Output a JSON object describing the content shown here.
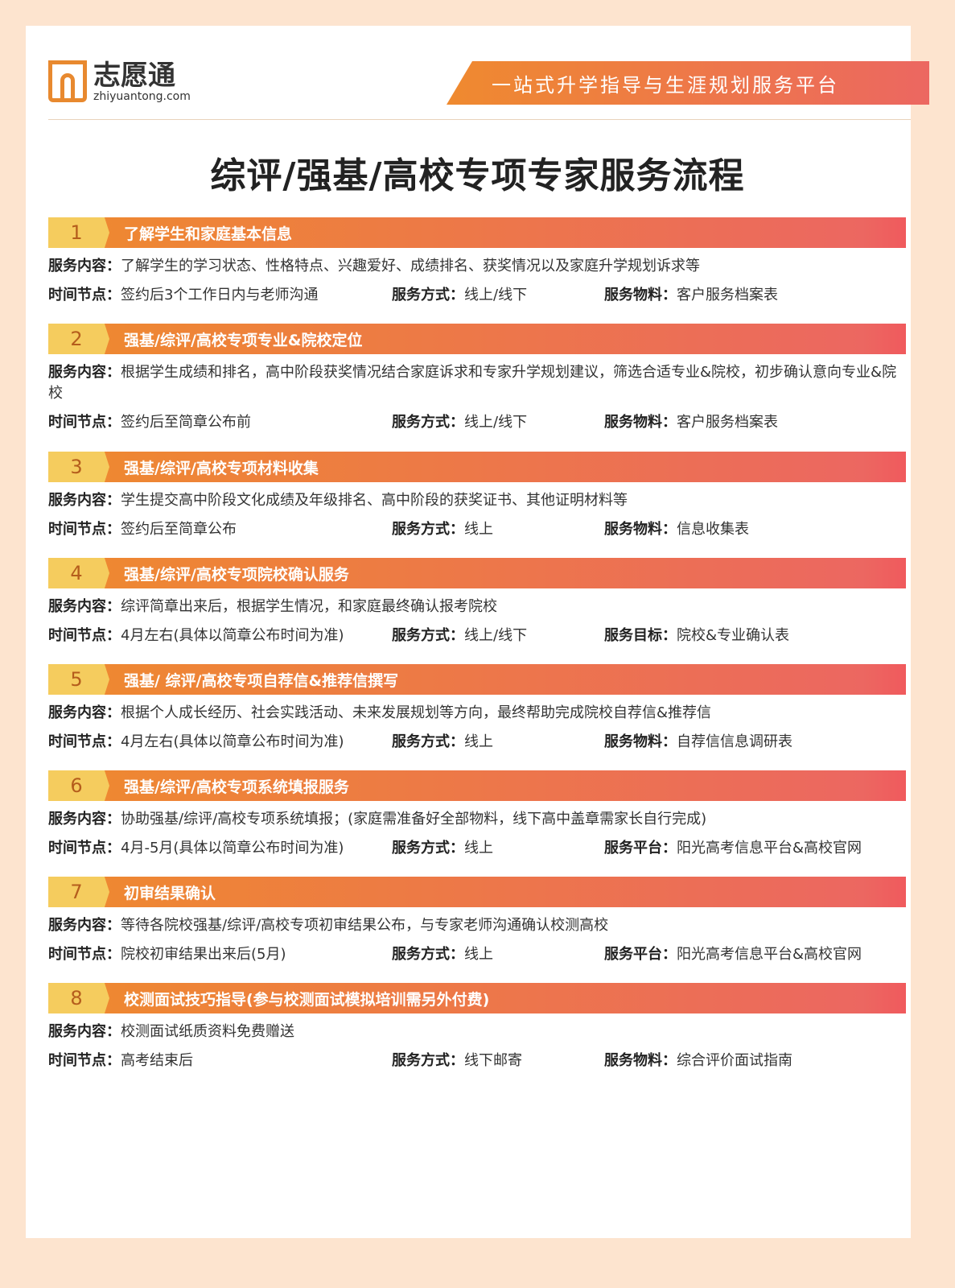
{
  "brand": {
    "name_cn": "志愿通",
    "domain": "zhiyuantong.com",
    "slogan": "一站式升学指导与生涯规划服务平台"
  },
  "title": "综评/强基/高校专项专家服务流程",
  "labels": {
    "content": "服务内容：",
    "time": "时间节点：",
    "method": "服务方式："
  },
  "steps": [
    {
      "num": "1",
      "title": "了解学生和家庭基本信息",
      "content": "了解学生的学习状态、性格特点、兴趣爱好、成绩排名、获奖情况以及家庭升学规划诉求等",
      "time": "签约后3个工作日内与老师沟通",
      "method": "线上/线下",
      "third_label": "服务物料：",
      "third": "客户服务档案表"
    },
    {
      "num": "2",
      "title": "强基/综评/高校专项专业&院校定位",
      "content": "根据学生成绩和排名，高中阶段获奖情况结合家庭诉求和专家升学规划建议，筛选合适专业&院校，初步确认意向专业&院校",
      "time": "签约后至简章公布前",
      "method": "线上/线下",
      "third_label": "服务物料：",
      "third": "客户服务档案表"
    },
    {
      "num": "3",
      "title": "强基/综评/高校专项材料收集",
      "content": "学生提交高中阶段文化成绩及年级排名、高中阶段的获奖证书、其他证明材料等",
      "time": "签约后至简章公布",
      "method": "线上",
      "third_label": "服务物料：",
      "third": "信息收集表"
    },
    {
      "num": "4",
      "title": "强基/综评/高校专项院校确认服务",
      "content": "综评简章出来后，根据学生情况，和家庭最终确认报考院校",
      "time": "4月左右(具体以简章公布时间为准)",
      "method": "线上/线下",
      "third_label": "服务目标：",
      "third": "院校&专业确认表"
    },
    {
      "num": "5",
      "title": "强基/ 综评/高校专项自荐信&推荐信撰写",
      "content": "根据个人成长经历、社会实践活动、未来发展规划等方向，最终帮助完成院校自荐信&推荐信",
      "time": "4月左右(具体以简章公布时间为准)",
      "method": "线上",
      "third_label": "服务物料：",
      "third": "自荐信信息调研表"
    },
    {
      "num": "6",
      "title": "强基/综评/高校专项系统填报服务",
      "content": "协助强基/综评/高校专项系统填报；(家庭需准备好全部物料，线下高中盖章需家长自行完成)",
      "time": "4月-5月(具体以简章公布时间为准)",
      "method": "线上",
      "third_label": "服务平台：",
      "third": "阳光高考信息平台&高校官网"
    },
    {
      "num": "7",
      "title": "初审结果确认",
      "content": "等待各院校强基/综评/高校专项初审结果公布，与专家老师沟通确认校测高校",
      "time": "院校初审结果出来后(5月)",
      "method": "线上",
      "third_label": "服务平台：",
      "third": "阳光高考信息平台&高校官网"
    },
    {
      "num": "8",
      "title": "校测面试技巧指导(参与校测面试模拟培训需另外付费)",
      "content": "校测面试纸质资料免费赠送",
      "time": "高考结束后",
      "method": "线下邮寄",
      "third_label": "服务物料：",
      "third": "综合评价面试指南"
    }
  ],
  "colors": {
    "background": "#fde4cf",
    "bar_start": "#ee8a2e",
    "bar_end": "#ec6761",
    "number_box": "#f5cc5e",
    "number_text": "#b55d1c"
  }
}
